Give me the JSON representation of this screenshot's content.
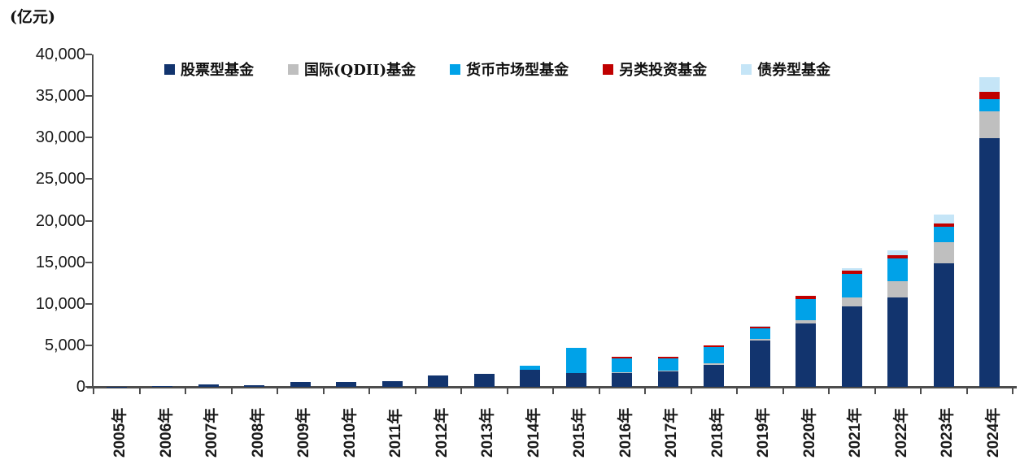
{
  "unit_label": "(亿元)",
  "colors": {
    "equity": "#12346E",
    "qdii": "#BFBFBF",
    "money_market": "#00A2E8",
    "alternative": "#C00000",
    "bond": "#C5E5F7",
    "axis": "#4d4d4d"
  },
  "chart_data": {
    "type": "bar",
    "stacked": true,
    "title": "",
    "ylabel": "(亿元)",
    "xlabel": "",
    "ylim": [
      0,
      40000
    ],
    "ytick_step": 5000,
    "ytick_labels": [
      "0",
      "5,000",
      "10,000",
      "15,000",
      "20,000",
      "25,000",
      "30,000",
      "35,000",
      "40,000"
    ],
    "legend_position": "top",
    "grid": false,
    "categories": [
      "2005年",
      "2006年",
      "2007年",
      "2008年",
      "2009年",
      "2010年",
      "2011年",
      "2012年",
      "2013年",
      "2014年",
      "2015年",
      "2016年",
      "2017年",
      "2018年",
      "2019年",
      "2020年",
      "2021年",
      "2022年",
      "2023年",
      "2024年"
    ],
    "series": [
      {
        "name": "股票型基金",
        "color_key": "equity",
        "values": [
          20,
          110,
          310,
          160,
          580,
          600,
          680,
          1350,
          1600,
          2050,
          1700,
          1700,
          1850,
          2650,
          5600,
          7600,
          9650,
          10750,
          14900,
          29900
        ]
      },
      {
        "name": "国际(QDII)基金",
        "color_key": "qdii",
        "values": [
          0,
          0,
          0,
          0,
          0,
          0,
          0,
          0,
          0,
          0,
          0,
          100,
          100,
          150,
          150,
          400,
          1100,
          1950,
          2550,
          3250
        ]
      },
      {
        "name": "货币市场型基金",
        "color_key": "money_market",
        "values": [
          0,
          0,
          0,
          0,
          0,
          0,
          0,
          0,
          0,
          450,
          3000,
          1650,
          1500,
          2000,
          1320,
          2550,
          2800,
          2800,
          1800,
          1500
        ]
      },
      {
        "name": "另类投资基金",
        "color_key": "alternative",
        "values": [
          0,
          0,
          0,
          0,
          0,
          0,
          0,
          0,
          0,
          0,
          0,
          200,
          150,
          150,
          200,
          400,
          400,
          300,
          400,
          900
        ]
      },
      {
        "name": "债券型基金",
        "color_key": "bond",
        "values": [
          0,
          0,
          0,
          0,
          0,
          0,
          0,
          0,
          0,
          0,
          0,
          0,
          0,
          0,
          100,
          0,
          300,
          600,
          1050,
          1750
        ]
      }
    ]
  }
}
